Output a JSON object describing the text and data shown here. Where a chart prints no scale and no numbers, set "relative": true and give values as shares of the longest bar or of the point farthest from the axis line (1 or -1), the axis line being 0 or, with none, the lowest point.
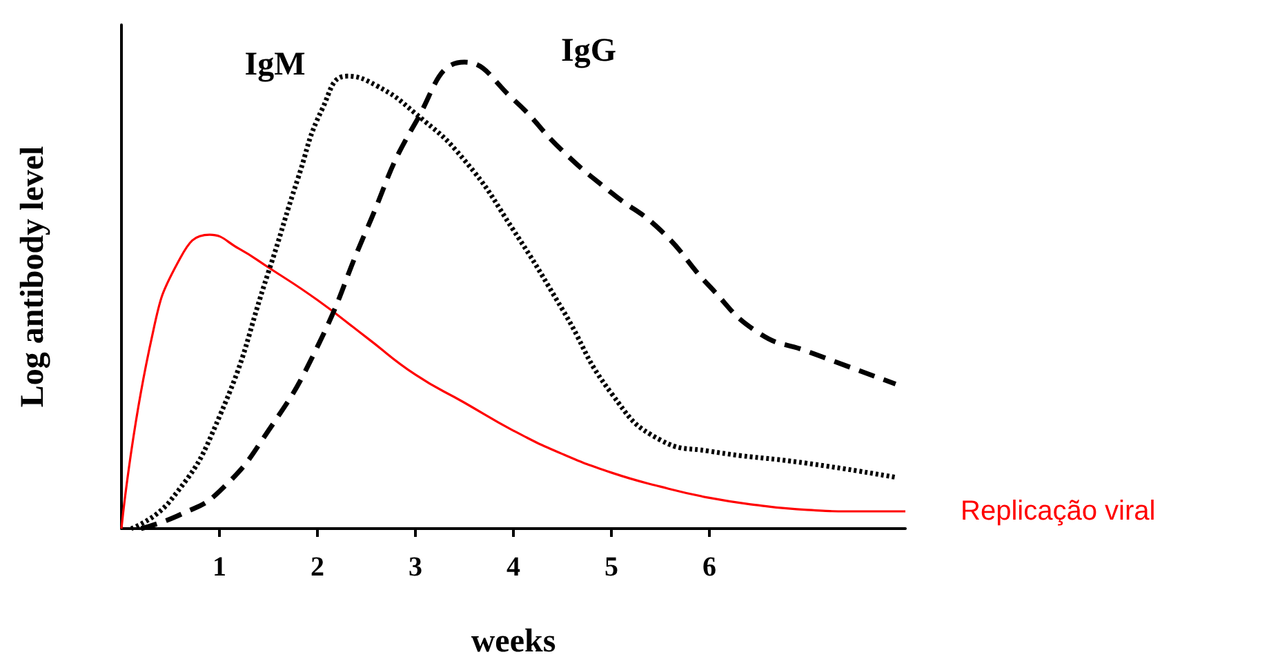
{
  "chart_data": {
    "type": "line",
    "relative": true,
    "xlabel": "weeks",
    "ylabel": "Log antibody level",
    "xlim": [
      0,
      8
    ],
    "xticks": [
      1,
      2,
      3,
      4,
      5,
      6
    ],
    "grid": false,
    "legend": false,
    "marker": "none",
    "series": [
      {
        "name": "Replicação viral",
        "color": "#ff0000",
        "line_style": "solid",
        "x": [
          0,
          0.3,
          0.6,
          0.9,
          1.2,
          1.5,
          2,
          2.5,
          3,
          3.5,
          4,
          4.5,
          5,
          5.5,
          6,
          6.5,
          7,
          7.5,
          8
        ],
        "values": [
          0,
          0.4,
          0.58,
          0.63,
          0.6,
          0.56,
          0.49,
          0.41,
          0.33,
          0.27,
          0.21,
          0.16,
          0.12,
          0.09,
          0.066,
          0.05,
          0.04,
          0.037,
          0.037
        ]
      },
      {
        "name": "IgM",
        "color": "#000000",
        "line_style": "dotted",
        "x": [
          0.1,
          0.5,
          1,
          1.5,
          1.8,
          2.05,
          2.3,
          2.6,
          3,
          3.5,
          4,
          4.5,
          5,
          5.5,
          6,
          7,
          7.9
        ],
        "values": [
          0,
          0.06,
          0.24,
          0.55,
          0.75,
          0.9,
          0.97,
          0.95,
          0.89,
          0.79,
          0.64,
          0.47,
          0.29,
          0.19,
          0.166,
          0.14,
          0.11
        ]
      },
      {
        "name": "IgG",
        "color": "#000000",
        "line_style": "dashed",
        "x": [
          0.2,
          0.6,
          1,
          1.5,
          2,
          2.5,
          3,
          3.5,
          4,
          4.5,
          5,
          5.5,
          6,
          6.5,
          7,
          7.9
        ],
        "values": [
          0,
          0.03,
          0.08,
          0.21,
          0.39,
          0.64,
          0.87,
          1,
          0.92,
          0.81,
          0.72,
          0.64,
          0.52,
          0.42,
          0.38,
          0.31
        ]
      }
    ]
  }
}
